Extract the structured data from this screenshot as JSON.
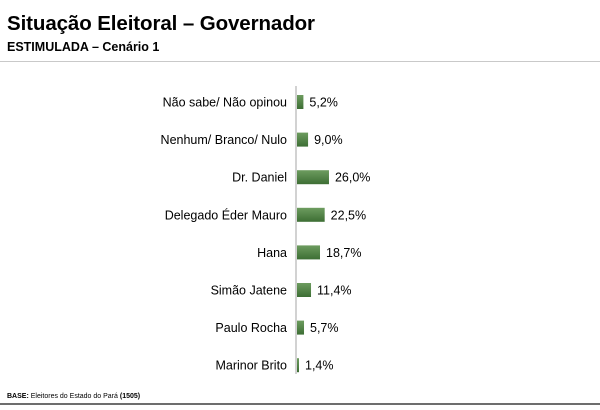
{
  "header": {
    "title": "Situação Eleitoral – Governador",
    "subtitle": "ESTIMULADA – Cenário 1"
  },
  "footer": {
    "base_label": "BASE:",
    "base_text": "Eleitores do Estado do Pará",
    "base_count": "(1505)"
  },
  "colors": {
    "bar": "#3d6e34",
    "bar_light": "#6d9c5f",
    "axis": "#a6a6a6"
  },
  "chart_data": {
    "type": "bar",
    "orientation": "horizontal",
    "categories": [
      "Não sabe/ Não opinou",
      "Nenhum/ Branco/ Nulo",
      "Dr. Daniel",
      "Delegado Éder Mauro",
      "Hana",
      "Simão Jatene",
      "Paulo Rocha",
      "Marinor Brito"
    ],
    "values": [
      5.2,
      9.0,
      26.0,
      22.5,
      18.7,
      11.4,
      5.7,
      1.4
    ],
    "value_labels": [
      "5,2%",
      "9,0%",
      "26,0%",
      "22,5%",
      "18,7%",
      "11,4%",
      "5,7%",
      "1,4%"
    ],
    "xlim": [
      0,
      100
    ],
    "grid": false,
    "legend": "none"
  }
}
